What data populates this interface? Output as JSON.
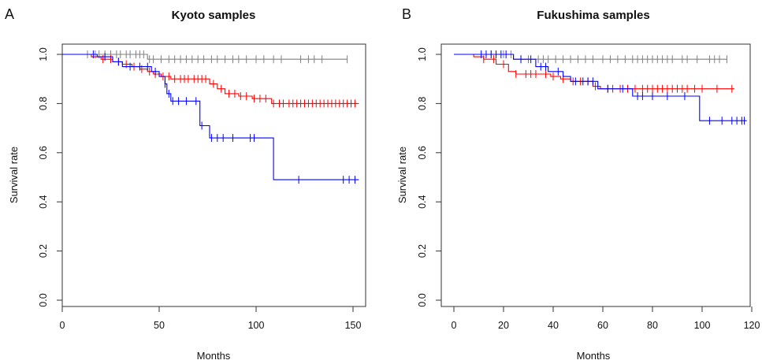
{
  "chart_data": [
    {
      "type": "line",
      "panel_label": "A",
      "title": "Kyoto samples",
      "xlabel": "Months",
      "ylabel": "Survival rate",
      "xlim": [
        0,
        155
      ],
      "ylim": [
        0,
        1.0
      ],
      "xticks": [
        0,
        50,
        100,
        150
      ],
      "yticks": [
        0.0,
        0.2,
        0.4,
        0.6,
        0.8,
        1.0
      ],
      "xtick_labels": [
        "0",
        "50",
        "100",
        "150"
      ],
      "ytick_labels": [
        "0.0",
        "0.2",
        "0.4",
        "0.6",
        "0.8",
        "1.0"
      ],
      "grid": false,
      "series": [
        {
          "color": "#808080",
          "steps": [
            [
              0,
              1.0
            ],
            [
              44,
              1.0
            ],
            [
              44,
              0.98
            ],
            [
              147,
              0.98
            ]
          ],
          "censored_x": [
            13,
            17,
            19,
            22,
            25,
            28,
            30,
            33,
            35,
            38,
            40,
            42,
            45,
            47,
            51,
            55,
            58,
            61,
            64,
            67,
            70,
            73,
            77,
            80,
            84,
            88,
            91,
            95,
            100,
            104,
            109,
            113,
            123,
            127,
            130,
            134,
            147
          ]
        },
        {
          "color": "#ff0000",
          "steps": [
            [
              0,
              1.0
            ],
            [
              15,
              1.0
            ],
            [
              15,
              0.99
            ],
            [
              20,
              0.99
            ],
            [
              20,
              0.98
            ],
            [
              26,
              0.98
            ],
            [
              26,
              0.97
            ],
            [
              31,
              0.97
            ],
            [
              31,
              0.96
            ],
            [
              36,
              0.96
            ],
            [
              36,
              0.95
            ],
            [
              40,
              0.95
            ],
            [
              40,
              0.94
            ],
            [
              44,
              0.94
            ],
            [
              44,
              0.93
            ],
            [
              47,
              0.93
            ],
            [
              47,
              0.92
            ],
            [
              51,
              0.92
            ],
            [
              51,
              0.91
            ],
            [
              56,
              0.91
            ],
            [
              56,
              0.9
            ],
            [
              76,
              0.9
            ],
            [
              76,
              0.88
            ],
            [
              80,
              0.88
            ],
            [
              80,
              0.86
            ],
            [
              84,
              0.86
            ],
            [
              84,
              0.84
            ],
            [
              91,
              0.84
            ],
            [
              91,
              0.83
            ],
            [
              98,
              0.83
            ],
            [
              98,
              0.82
            ],
            [
              108,
              0.82
            ],
            [
              108,
              0.8
            ],
            [
              153,
              0.8
            ]
          ],
          "censored_x": [
            21,
            25,
            29,
            33,
            37,
            41,
            45,
            48,
            52,
            55,
            58,
            61,
            63,
            65,
            68,
            70,
            72,
            74,
            78,
            82,
            86,
            89,
            92,
            95,
            99,
            102,
            105,
            109,
            112,
            114,
            117,
            119,
            121,
            123,
            125,
            127,
            129,
            131,
            133,
            135,
            137,
            139,
            141,
            143,
            145,
            147,
            149,
            151
          ]
        },
        {
          "color": "#0000ff",
          "steps": [
            [
              0,
              1.0
            ],
            [
              18,
              1.0
            ],
            [
              18,
              0.99
            ],
            [
              26,
              0.99
            ],
            [
              26,
              0.97
            ],
            [
              31,
              0.97
            ],
            [
              31,
              0.95
            ],
            [
              46,
              0.95
            ],
            [
              46,
              0.93
            ],
            [
              50,
              0.93
            ],
            [
              50,
              0.91
            ],
            [
              53,
              0.91
            ],
            [
              53,
              0.88
            ],
            [
              54,
              0.88
            ],
            [
              54,
              0.84
            ],
            [
              56,
              0.84
            ],
            [
              56,
              0.81
            ],
            [
              71,
              0.81
            ],
            [
              71,
              0.71
            ],
            [
              76,
              0.71
            ],
            [
              76,
              0.66
            ],
            [
              109,
              0.66
            ],
            [
              109,
              0.49
            ],
            [
              153,
              0.49
            ]
          ],
          "censored_x": [
            16,
            22,
            29,
            35,
            40,
            44,
            48,
            53,
            55,
            57,
            60,
            64,
            69,
            72,
            77,
            80,
            83,
            88,
            97,
            99,
            122,
            145,
            148,
            151
          ]
        }
      ]
    },
    {
      "type": "line",
      "panel_label": "B",
      "title": "Fukushima samples",
      "xlabel": "Months",
      "ylabel": "Survival rate",
      "xlim": [
        0,
        120
      ],
      "ylim": [
        0,
        1.0
      ],
      "xticks": [
        0,
        20,
        40,
        60,
        80,
        100,
        120
      ],
      "yticks": [
        0.0,
        0.2,
        0.4,
        0.6,
        0.8,
        1.0
      ],
      "xtick_labels": [
        "0",
        "20",
        "40",
        "60",
        "80",
        "100",
        "120"
      ],
      "ytick_labels": [
        "0.0",
        "0.2",
        "0.4",
        "0.6",
        "0.8",
        "1.0"
      ],
      "grid": false,
      "series": [
        {
          "color": "#808080",
          "steps": [
            [
              0,
              1.0
            ],
            [
              24,
              1.0
            ],
            [
              24,
              0.98
            ],
            [
              110,
              0.98
            ]
          ],
          "censored_x": [
            15,
            20,
            23,
            27,
            30,
            34,
            36,
            38,
            41,
            44,
            47,
            50,
            53,
            56,
            60,
            63,
            66,
            69,
            72,
            74,
            76,
            78,
            80,
            82,
            84,
            86,
            88,
            92,
            94,
            98,
            103,
            105,
            107,
            110
          ]
        },
        {
          "color": "#ff0000",
          "steps": [
            [
              0,
              1.0
            ],
            [
              8,
              1.0
            ],
            [
              8,
              0.99
            ],
            [
              12,
              0.99
            ],
            [
              12,
              0.98
            ],
            [
              17,
              0.98
            ],
            [
              17,
              0.96
            ],
            [
              22,
              0.96
            ],
            [
              22,
              0.93
            ],
            [
              25,
              0.93
            ],
            [
              25,
              0.92
            ],
            [
              39,
              0.92
            ],
            [
              39,
              0.91
            ],
            [
              43,
              0.91
            ],
            [
              43,
              0.9
            ],
            [
              47,
              0.9
            ],
            [
              47,
              0.89
            ],
            [
              56,
              0.89
            ],
            [
              56,
              0.87
            ],
            [
              59,
              0.87
            ],
            [
              59,
              0.86
            ],
            [
              113,
              0.86
            ]
          ],
          "censored_x": [
            12,
            16,
            20,
            25,
            29,
            31,
            33,
            37,
            40,
            44,
            48,
            51,
            54,
            57,
            62,
            64,
            67,
            70,
            73,
            76,
            78,
            80,
            82,
            84,
            86,
            88,
            90,
            92,
            94,
            97,
            100,
            106,
            112
          ]
        },
        {
          "color": "#0000ff",
          "steps": [
            [
              0,
              1.0
            ],
            [
              24,
              1.0
            ],
            [
              24,
              0.98
            ],
            [
              33,
              0.98
            ],
            [
              33,
              0.95
            ],
            [
              38,
              0.95
            ],
            [
              38,
              0.93
            ],
            [
              44,
              0.93
            ],
            [
              44,
              0.91
            ],
            [
              47,
              0.91
            ],
            [
              47,
              0.89
            ],
            [
              58,
              0.89
            ],
            [
              58,
              0.86
            ],
            [
              72,
              0.86
            ],
            [
              72,
              0.83
            ],
            [
              99,
              0.83
            ],
            [
              99,
              0.73
            ],
            [
              118,
              0.73
            ]
          ],
          "censored_x": [
            11,
            13,
            15,
            17,
            19,
            21,
            27,
            31,
            35,
            37,
            42,
            49,
            52,
            54,
            56,
            62,
            68,
            74,
            76,
            80,
            86,
            93,
            103,
            108,
            112,
            114,
            116,
            117
          ]
        }
      ]
    }
  ]
}
